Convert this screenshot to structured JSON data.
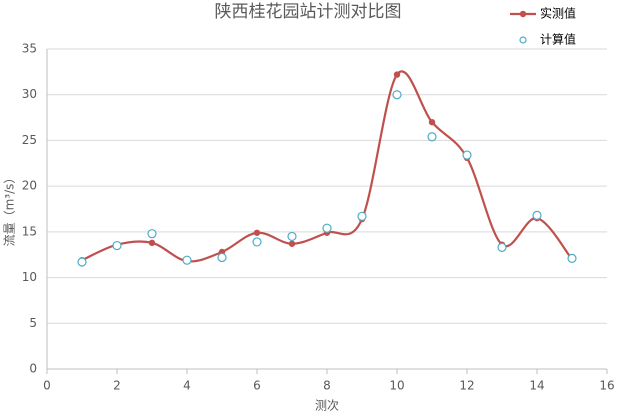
{
  "chart_data": {
    "type": "line",
    "title": "陕西桂花园站计测对比图",
    "x_label": "测次",
    "y_label": "流量（m³/s）",
    "x": [
      1,
      2,
      3,
      4,
      5,
      6,
      7,
      8,
      9,
      10,
      11,
      12,
      13,
      14,
      15
    ],
    "series": [
      {
        "name": "实测值",
        "color": "#c0504d",
        "style": "smooth-line-marker",
        "values": [
          11.9,
          13.6,
          13.8,
          11.8,
          12.8,
          14.9,
          13.7,
          14.9,
          16.4,
          32.2,
          27.0,
          23.1,
          13.6,
          16.5,
          12.0
        ]
      },
      {
        "name": "计算值",
        "color": "#4bacc6",
        "style": "hollow-marker",
        "values": [
          11.7,
          13.5,
          14.8,
          11.9,
          12.2,
          13.9,
          14.5,
          15.4,
          16.7,
          30.0,
          25.4,
          23.4,
          13.3,
          16.8,
          12.1
        ]
      }
    ],
    "xlim": [
      0,
      16
    ],
    "xticks": [
      0,
      2,
      4,
      6,
      8,
      10,
      12,
      14,
      16
    ],
    "ylim": [
      0,
      35
    ],
    "yticks": [
      0,
      5,
      10,
      15,
      20,
      25,
      30,
      35
    ],
    "grid": true,
    "legend": "top-right"
  }
}
